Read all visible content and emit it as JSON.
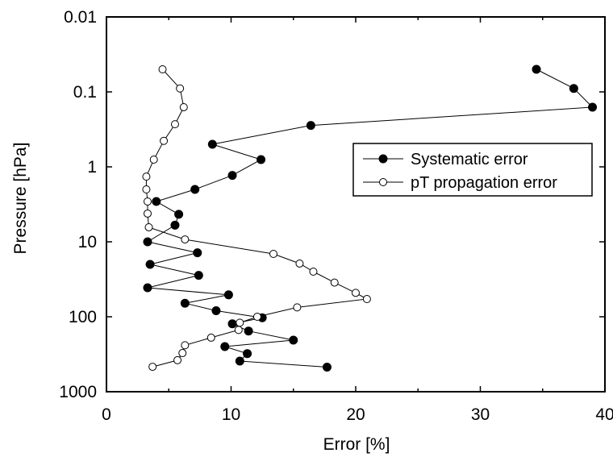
{
  "chart_data": {
    "type": "scatter",
    "xlabel": "Error [%]",
    "ylabel": "Pressure [hPa]",
    "xlim": [
      0,
      40
    ],
    "ylim": [
      1000,
      0.01
    ],
    "y_scale": "log",
    "y_inverted": true,
    "x_ticks": [
      0,
      10,
      20,
      30,
      40
    ],
    "y_ticks": [
      0.01,
      0.1,
      1,
      10,
      100,
      1000
    ],
    "x_tick_labels": [
      "0",
      "10",
      "20",
      "30",
      "40"
    ],
    "y_tick_labels": [
      "0.01",
      "0.1",
      "1",
      "10",
      "100",
      "1000"
    ],
    "legend_position": "right",
    "grid": false,
    "series": [
      {
        "name": "Systematic error",
        "marker": "filled-circle",
        "color": "#000000",
        "x": [
          34.5,
          37.5,
          39,
          16.4,
          8.5,
          12.4,
          10.1,
          7.1,
          4.0,
          5.8,
          5.5,
          3.3,
          7.3,
          3.5,
          7.4,
          3.3,
          9.8,
          6.3,
          8.8,
          12.5,
          10.1,
          11.4,
          15.0,
          9.5,
          11.3,
          10.7,
          17.7
        ],
        "y": [
          0.05,
          0.09,
          0.16,
          0.28,
          0.5,
          0.8,
          1.3,
          2.0,
          2.9,
          4.3,
          6.0,
          10,
          14,
          20,
          28,
          41,
          51,
          66,
          83,
          103,
          124,
          155,
          205,
          250,
          310,
          390,
          470
        ]
      },
      {
        "name": "pT propagation error",
        "marker": "open-circle",
        "color": "#000000",
        "x": [
          4.5,
          5.9,
          6.2,
          5.5,
          4.6,
          3.8,
          3.2,
          3.2,
          3.3,
          3.3,
          3.4,
          6.3,
          13.4,
          15.5,
          16.6,
          18.3,
          20.0,
          20.9,
          15.3,
          12.1,
          10.7,
          10.6,
          8.4,
          6.3,
          6.1,
          5.7,
          3.7
        ],
        "y": [
          0.05,
          0.09,
          0.16,
          0.27,
          0.45,
          0.8,
          1.35,
          2.0,
          2.9,
          4.2,
          6.4,
          9.3,
          14.5,
          19.5,
          25,
          35,
          48,
          58,
          75,
          100,
          120,
          150,
          190,
          240,
          305,
          380,
          465
        ]
      }
    ]
  }
}
